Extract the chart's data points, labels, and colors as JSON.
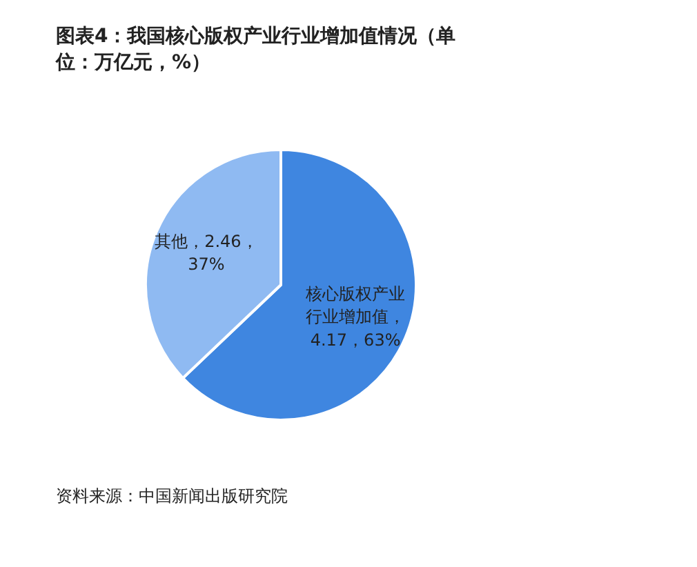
{
  "chart_data": {
    "type": "pie",
    "title": "图表4：我国核心版权产业行业增加值情况（单位：万亿元，%）",
    "categories": [
      "核心版权产业行业增加值",
      "其他"
    ],
    "values": [
      4.17,
      2.46
    ],
    "value_labels": [
      "，4.17，63%",
      "，2.46，37%"
    ],
    "colors": [
      "#3f86e0",
      "#8fbaf2"
    ],
    "annotations": [
      "资料来源：中国新闻出版研究院"
    ]
  }
}
